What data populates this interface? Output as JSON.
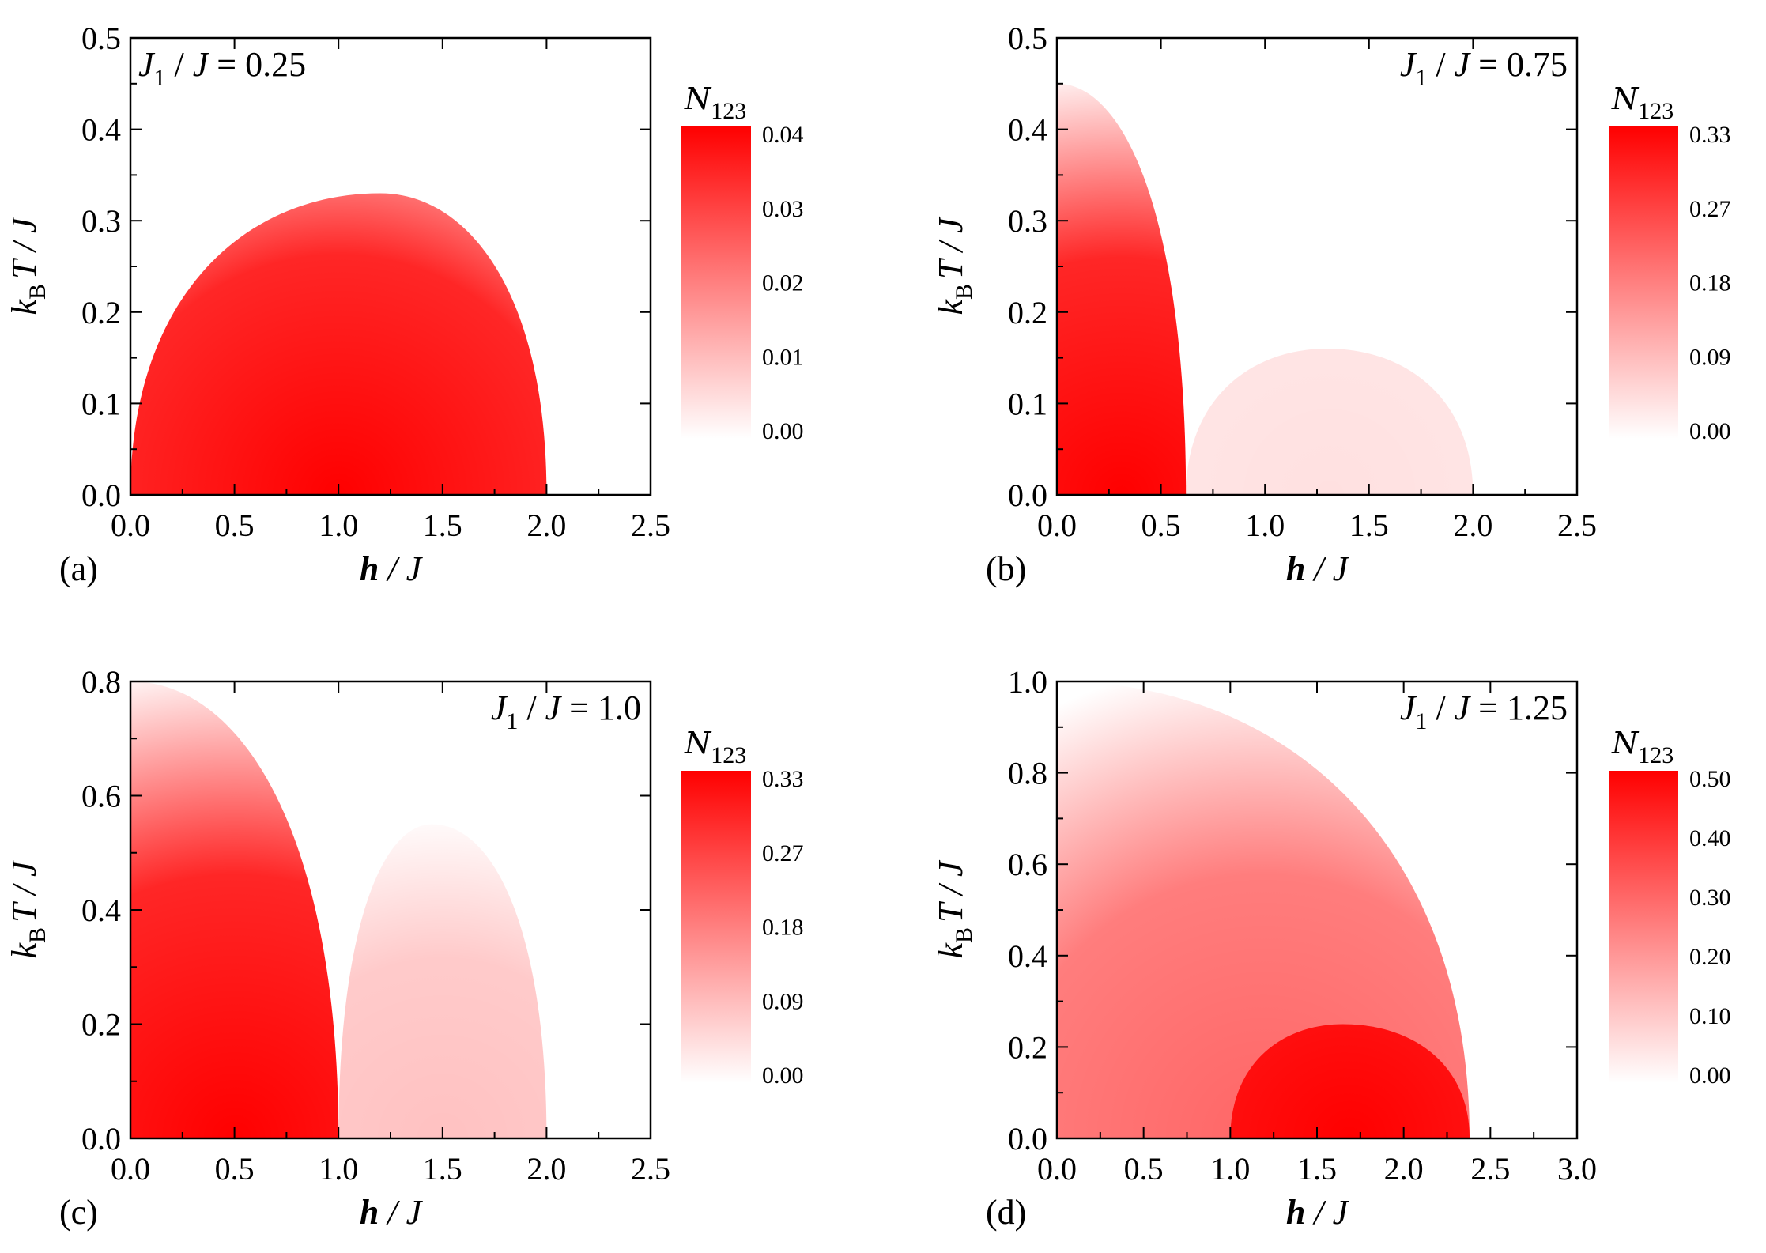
{
  "chart_data": [
    {
      "type": "heatmap",
      "panel_label": "(a)",
      "annotation": {
        "pre": "J",
        "sub": "1",
        "post": " / J = 0.25"
      },
      "xlabel": {
        "main": "h",
        "rest": " / J"
      },
      "ylabel": {
        "k": "k",
        "sub": "B",
        "rest": "T / J"
      },
      "xlim": [
        0,
        2.5
      ],
      "ylim": [
        0,
        0.5
      ],
      "xticks": [
        0.0,
        0.5,
        1.0,
        1.5,
        2.0,
        2.5
      ],
      "xtick_labels": [
        "0.0",
        "0.5",
        "1.0",
        "1.5",
        "2.0",
        "2.5"
      ],
      "yticks": [
        0.0,
        0.1,
        0.2,
        0.3,
        0.4,
        0.5
      ],
      "ytick_labels": [
        "0.0",
        "0.1",
        "0.2",
        "0.3",
        "0.4",
        "0.5"
      ],
      "colorbar": {
        "title_main": "N",
        "title_sub": "123",
        "ticks": [
          "0.04",
          "0.03",
          "0.02",
          "0.01",
          "0.00"
        ],
        "range": [
          0.0,
          0.04
        ],
        "color_high": "#ff0000",
        "color_low": "#ffffff"
      },
      "regions": [
        {
          "h_start": 0.0,
          "h_end": 2.0,
          "h_peak": 1.2,
          "t_peak": 0.33,
          "peak_value": 0.04
        }
      ]
    },
    {
      "type": "heatmap",
      "panel_label": "(b)",
      "annotation": {
        "pre": "J",
        "sub": "1",
        "post": " / J = 0.75"
      },
      "xlabel": {
        "main": "h",
        "rest": " / J"
      },
      "ylabel": {
        "k": "k",
        "sub": "B",
        "rest": "T / J"
      },
      "xlim": [
        0,
        2.5
      ],
      "ylim": [
        0,
        0.5
      ],
      "xticks": [
        0.0,
        0.5,
        1.0,
        1.5,
        2.0,
        2.5
      ],
      "xtick_labels": [
        "0.0",
        "0.5",
        "1.0",
        "1.5",
        "2.0",
        "2.5"
      ],
      "yticks": [
        0.0,
        0.1,
        0.2,
        0.3,
        0.4,
        0.5
      ],
      "ytick_labels": [
        "0.0",
        "0.1",
        "0.2",
        "0.3",
        "0.4",
        "0.5"
      ],
      "colorbar": {
        "title_main": "N",
        "title_sub": "123",
        "ticks": [
          "0.33",
          "0.27",
          "0.18",
          "0.09",
          "0.00"
        ],
        "range": [
          0.0,
          0.33
        ],
        "color_high": "#ff0000",
        "color_low": "#ffffff"
      },
      "regions": [
        {
          "h_start": 0.0,
          "h_end": 0.62,
          "h_peak": 0.0,
          "t_peak": 0.45,
          "peak_value": 0.33
        },
        {
          "h_start": 0.62,
          "h_end": 2.0,
          "h_peak": 1.3,
          "t_peak": 0.16,
          "peak_value": 0.04
        }
      ]
    },
    {
      "type": "heatmap",
      "panel_label": "(c)",
      "annotation": {
        "pre": "J",
        "sub": "1",
        "post": " / J = 1.0"
      },
      "xlabel": {
        "main": "h",
        "rest": " / J"
      },
      "ylabel": {
        "k": "k",
        "sub": "B",
        "rest": "T / J"
      },
      "xlim": [
        0,
        2.5
      ],
      "ylim": [
        0,
        0.8
      ],
      "xticks": [
        0.0,
        0.5,
        1.0,
        1.5,
        2.0,
        2.5
      ],
      "xtick_labels": [
        "0.0",
        "0.5",
        "1.0",
        "1.5",
        "2.0",
        "2.5"
      ],
      "yticks": [
        0.0,
        0.2,
        0.4,
        0.6,
        0.8
      ],
      "ytick_labels": [
        "0.0",
        "0.2",
        "0.4",
        "0.6",
        "0.8"
      ],
      "colorbar": {
        "title_main": "N",
        "title_sub": "123",
        "ticks": [
          "0.33",
          "0.27",
          "0.18",
          "0.09",
          "0.00"
        ],
        "range": [
          0.0,
          0.33
        ],
        "color_high": "#ff0000",
        "color_low": "#ffffff"
      },
      "regions": [
        {
          "h_start": 0.0,
          "h_end": 1.0,
          "h_peak": 0.0,
          "t_peak": 0.8,
          "peak_value": 0.33
        },
        {
          "h_start": 1.0,
          "h_end": 2.0,
          "h_peak": 1.45,
          "t_peak": 0.55,
          "peak_value": 0.08
        }
      ]
    },
    {
      "type": "heatmap",
      "panel_label": "(d)",
      "annotation": {
        "pre": "J",
        "sub": "1",
        "post": " / J = 1.25"
      },
      "xlabel": {
        "main": "h",
        "rest": " / J"
      },
      "ylabel": {
        "k": "k",
        "sub": "B",
        "rest": "T / J"
      },
      "xlim": [
        0,
        3.0
      ],
      "ylim": [
        0,
        1.0
      ],
      "xticks": [
        0.0,
        0.5,
        1.0,
        1.5,
        2.0,
        2.5,
        3.0
      ],
      "xtick_labels": [
        "0.0",
        "0.5",
        "1.0",
        "1.5",
        "2.0",
        "2.5",
        "3.0"
      ],
      "yticks": [
        0.0,
        0.2,
        0.4,
        0.6,
        0.8,
        1.0
      ],
      "ytick_labels": [
        "0.0",
        "0.2",
        "0.4",
        "0.6",
        "0.8",
        "1.0"
      ],
      "colorbar": {
        "title_main": "N",
        "title_sub": "123",
        "ticks": [
          "0.50",
          "0.40",
          "0.30",
          "0.20",
          "0.10",
          "0.00"
        ],
        "range": [
          0.0,
          0.5
        ],
        "color_high": "#ff0000",
        "color_low": "#ffffff"
      },
      "regions": [
        {
          "h_start": 0.0,
          "h_end": 2.38,
          "h_peak": 0.0,
          "t_peak": 1.0,
          "peak_value": 0.3
        },
        {
          "h_start": 1.0,
          "h_end": 2.38,
          "h_peak": 1.65,
          "t_peak": 0.25,
          "peak_value": 0.5
        }
      ]
    }
  ]
}
